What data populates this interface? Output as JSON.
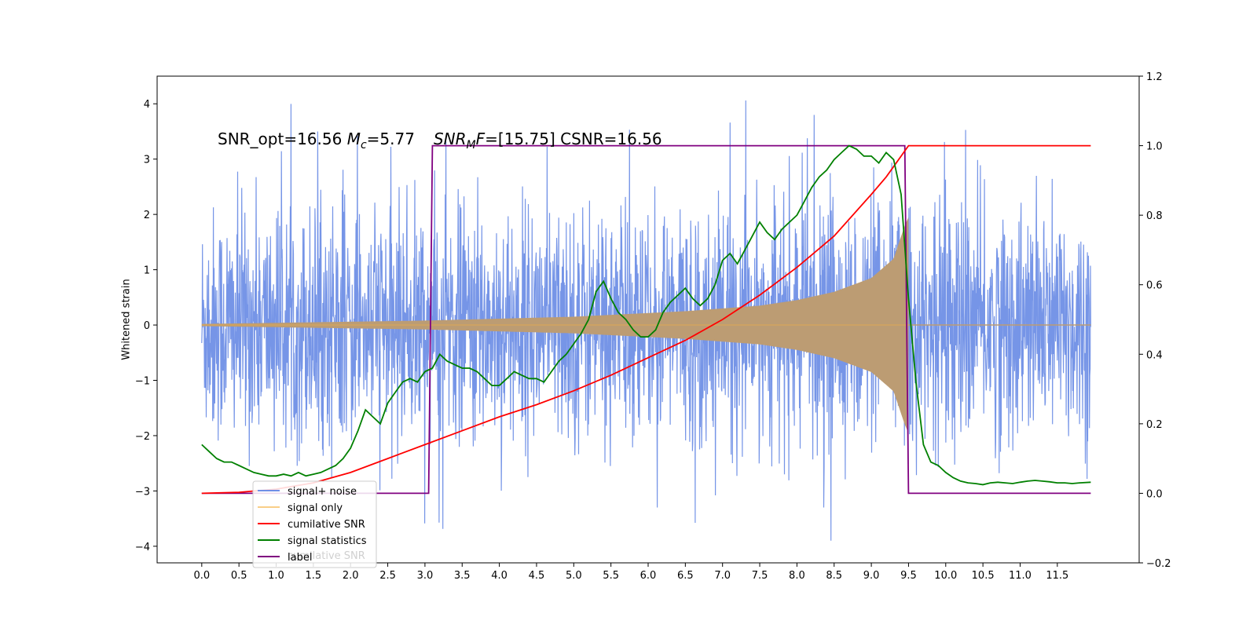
{
  "chart_data": {
    "type": "line",
    "title": "",
    "xlabel": "",
    "ylabel": "Whitened strain",
    "y2label": "",
    "xlim": [
      -0.6,
      12.6
    ],
    "ylim": [
      -4.3,
      4.5
    ],
    "y2lim": [
      -0.2,
      1.2
    ],
    "grid": false,
    "x_ticks": [
      "0.0",
      "0.5",
      "1.0",
      "1.5",
      "2.0",
      "2.5",
      "3.0",
      "3.5",
      "4.0",
      "4.5",
      "5.0",
      "5.5",
      "6.0",
      "6.5",
      "7.0",
      "7.5",
      "8.0",
      "8.5",
      "9.0",
      "9.5",
      "10.0",
      "10.5",
      "11.0",
      "11.5"
    ],
    "y_ticks": [
      "−4",
      "−3",
      "−2",
      "−1",
      "0",
      "1",
      "2",
      "3",
      "4"
    ],
    "y2_ticks": [
      "−0.2",
      "0.0",
      "0.2",
      "0.4",
      "0.6",
      "0.8",
      "1.0",
      "1.2"
    ],
    "annotation": {
      "prefix": "SNR_opt=16.56 ",
      "mc_symbol": "M",
      "mc_sub": "c",
      "mc_value": "=5.77",
      "snr_symbol": "SNR",
      "snr_sub": "M",
      "snr_tail": "F",
      "snr_value": "=[15.75] CSNR=16.56"
    },
    "colors": {
      "noise": "#6f8fe6",
      "signal": "#f5b041",
      "overlap": "#bc9c73",
      "cumulative": "#ff0000",
      "statistics": "#008000",
      "label": "#800080"
    },
    "series": [
      {
        "name": "signal+ noise",
        "axis": "left",
        "note": "dense noise spanning about ±2.4 with spikes up to ±4.1"
      },
      {
        "name": "signal only",
        "axis": "left",
        "t_start": 0.0,
        "t_end": 9.5,
        "amplitude_points": [
          [
            0.0,
            0.02
          ],
          [
            3.0,
            0.08
          ],
          [
            5.0,
            0.15
          ],
          [
            6.5,
            0.25
          ],
          [
            7.5,
            0.35
          ],
          [
            8.0,
            0.45
          ],
          [
            8.5,
            0.6
          ],
          [
            9.0,
            0.85
          ],
          [
            9.3,
            1.2
          ],
          [
            9.45,
            1.8
          ],
          [
            9.5,
            1.95
          ]
        ]
      },
      {
        "name": "cumilative SNR",
        "axis": "right",
        "x": [
          0,
          0.5,
          1.0,
          1.5,
          2.0,
          2.5,
          3.0,
          3.5,
          4.0,
          4.5,
          5.0,
          5.5,
          6.0,
          6.5,
          7.0,
          7.5,
          8.0,
          8.5,
          9.0,
          9.2,
          9.4,
          9.5,
          9.6,
          10.0,
          11.0,
          11.5,
          11.95
        ],
        "y": [
          0,
          0.003,
          0.012,
          0.03,
          0.06,
          0.1,
          0.14,
          0.18,
          0.22,
          0.255,
          0.295,
          0.34,
          0.39,
          0.44,
          0.5,
          0.57,
          0.65,
          0.74,
          0.86,
          0.91,
          0.97,
          1.0,
          1.0,
          1.0,
          1.0,
          1.0,
          1.0
        ]
      },
      {
        "name": "signal statistics",
        "axis": "right",
        "x": [
          0,
          0.1,
          0.2,
          0.3,
          0.4,
          0.5,
          0.6,
          0.7,
          0.8,
          0.9,
          1.0,
          1.1,
          1.2,
          1.3,
          1.4,
          1.5,
          1.6,
          1.7,
          1.8,
          1.9,
          2.0,
          2.1,
          2.2,
          2.3,
          2.4,
          2.5,
          2.6,
          2.7,
          2.8,
          2.9,
          3.0,
          3.1,
          3.2,
          3.3,
          3.4,
          3.5,
          3.6,
          3.7,
          3.8,
          3.9,
          4.0,
          4.1,
          4.2,
          4.3,
          4.4,
          4.5,
          4.6,
          4.7,
          4.8,
          4.9,
          5.0,
          5.1,
          5.2,
          5.3,
          5.4,
          5.5,
          5.6,
          5.7,
          5.8,
          5.9,
          6.0,
          6.1,
          6.2,
          6.3,
          6.4,
          6.5,
          6.6,
          6.7,
          6.8,
          6.9,
          7.0,
          7.1,
          7.2,
          7.3,
          7.4,
          7.5,
          7.6,
          7.7,
          7.8,
          7.9,
          8.0,
          8.1,
          8.2,
          8.3,
          8.4,
          8.5,
          8.6,
          8.7,
          8.8,
          8.9,
          9.0,
          9.1,
          9.2,
          9.3,
          9.4,
          9.5,
          9.6,
          9.7,
          9.8,
          9.9,
          10.0,
          10.1,
          10.2,
          10.3,
          10.4,
          10.5,
          10.6,
          10.7,
          10.8,
          10.9,
          11.0,
          11.1,
          11.2,
          11.3,
          11.4,
          11.5,
          11.6,
          11.7,
          11.8,
          11.95
        ],
        "y": [
          0.14,
          0.12,
          0.1,
          0.09,
          0.09,
          0.08,
          0.07,
          0.06,
          0.055,
          0.05,
          0.05,
          0.055,
          0.05,
          0.06,
          0.05,
          0.055,
          0.06,
          0.07,
          0.08,
          0.1,
          0.13,
          0.18,
          0.24,
          0.22,
          0.2,
          0.26,
          0.29,
          0.32,
          0.33,
          0.32,
          0.35,
          0.36,
          0.4,
          0.38,
          0.37,
          0.36,
          0.36,
          0.35,
          0.33,
          0.31,
          0.31,
          0.33,
          0.35,
          0.34,
          0.33,
          0.33,
          0.32,
          0.35,
          0.38,
          0.4,
          0.43,
          0.46,
          0.5,
          0.58,
          0.61,
          0.56,
          0.52,
          0.5,
          0.47,
          0.45,
          0.45,
          0.47,
          0.52,
          0.55,
          0.57,
          0.59,
          0.56,
          0.54,
          0.56,
          0.6,
          0.67,
          0.69,
          0.66,
          0.7,
          0.74,
          0.78,
          0.75,
          0.73,
          0.76,
          0.78,
          0.8,
          0.84,
          0.88,
          0.91,
          0.93,
          0.96,
          0.98,
          1.0,
          0.99,
          0.97,
          0.97,
          0.95,
          0.98,
          0.96,
          0.86,
          0.56,
          0.32,
          0.14,
          0.09,
          0.08,
          0.06,
          0.045,
          0.035,
          0.03,
          0.028,
          0.025,
          0.03,
          0.032,
          0.03,
          0.028,
          0.032,
          0.035,
          0.037,
          0.035,
          0.033,
          0.03,
          0.03,
          0.028,
          0.03,
          0.032
        ]
      },
      {
        "name": "label",
        "axis": "right",
        "x": [
          0,
          3.05,
          3.1,
          9.45,
          9.5,
          11.95
        ],
        "y": [
          0,
          0,
          1,
          1,
          0,
          0
        ]
      }
    ],
    "legend": {
      "placement": "lower-left",
      "entries": [
        "signal+ noise",
        "signal only",
        "cumilative SNR",
        "signal statistics",
        "label"
      ],
      "ghost_text": "cumilative SNR"
    }
  }
}
